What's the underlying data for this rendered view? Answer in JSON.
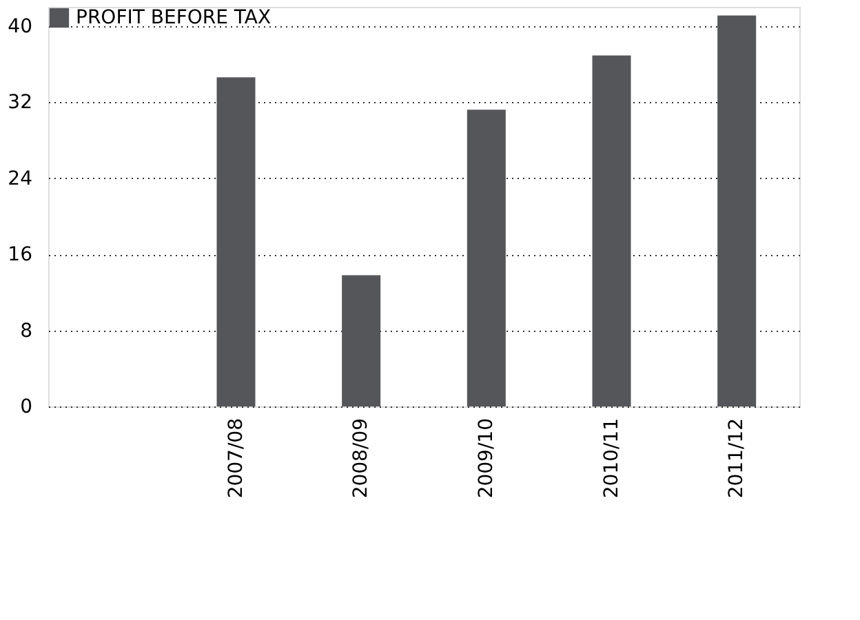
{
  "chart_data": {
    "type": "bar",
    "categories": [
      null,
      "2007/08",
      "2008/09",
      "2009/10",
      "2010/11",
      "2011/12"
    ],
    "series": [
      {
        "name": "PROFIT BEFORE TAX",
        "color": "#555659",
        "values": [
          null,
          34.6,
          13.8,
          31.2,
          36.9,
          41.1
        ]
      }
    ],
    "ylim": [
      0,
      42
    ],
    "yticks": [
      0,
      8,
      16,
      24,
      32,
      40
    ],
    "grid": "y",
    "legend": "top left"
  }
}
